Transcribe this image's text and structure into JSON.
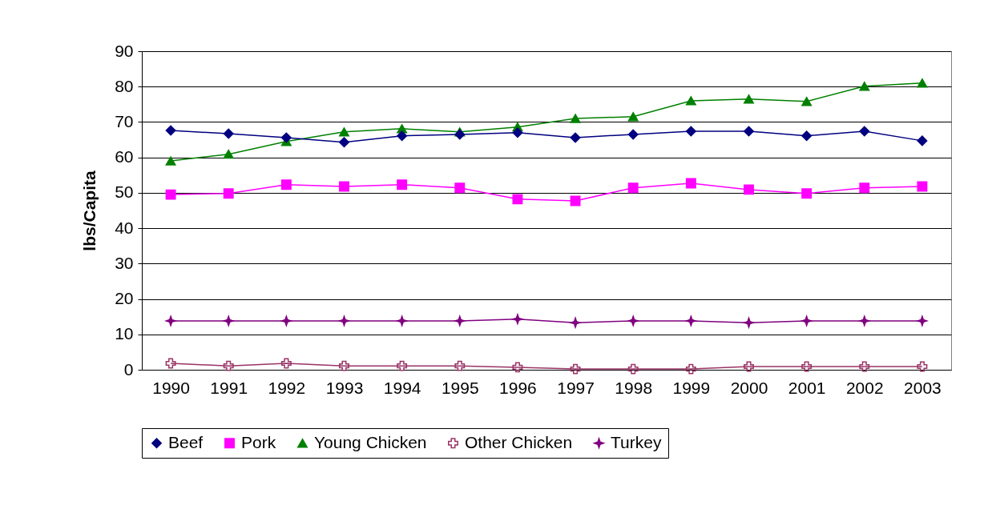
{
  "chart_data": {
    "type": "line",
    "ylabel": "lbs/Capita",
    "categories": [
      "1990",
      "1991",
      "1992",
      "1993",
      "1994",
      "1995",
      "1996",
      "1997",
      "1998",
      "1999",
      "2000",
      "2001",
      "2002",
      "2003"
    ],
    "ylim": [
      0,
      90
    ],
    "yticks": [
      0,
      10,
      20,
      30,
      40,
      50,
      60,
      70,
      80,
      90
    ],
    "grid": "y",
    "legend": "bottom",
    "series": [
      {
        "name": "Beef",
        "color": "#000080",
        "marker": "diamond",
        "values": [
          67.6,
          66.7,
          65.6,
          64.3,
          66.1,
          66.5,
          67.0,
          65.6,
          66.5,
          67.4,
          67.4,
          66.1,
          67.4,
          64.7
        ]
      },
      {
        "name": "Pork",
        "color": "#ff00ff",
        "marker": "square",
        "values": [
          49.5,
          49.8,
          52.3,
          51.8,
          52.3,
          51.4,
          48.2,
          47.7,
          51.4,
          52.7,
          50.9,
          49.8,
          51.4,
          51.8
        ]
      },
      {
        "name": "Young Chicken",
        "color": "#008000",
        "marker": "triangle",
        "values": [
          59.0,
          60.9,
          64.5,
          67.2,
          68.1,
          67.2,
          68.6,
          71.0,
          71.5,
          76.0,
          76.5,
          75.8,
          80.1,
          81.0
        ]
      },
      {
        "name": "Other Chicken",
        "color": "#993366",
        "marker": "cross",
        "values": [
          1.8,
          1.1,
          1.8,
          1.1,
          1.1,
          1.1,
          0.7,
          0.2,
          0.2,
          0.2,
          0.9,
          0.9,
          0.9,
          0.9
        ]
      },
      {
        "name": "Turkey",
        "color": "#800080",
        "marker": "star",
        "values": [
          13.8,
          13.8,
          13.8,
          13.8,
          13.8,
          13.8,
          14.3,
          13.3,
          13.8,
          13.8,
          13.3,
          13.8,
          13.8,
          13.8
        ]
      }
    ]
  }
}
